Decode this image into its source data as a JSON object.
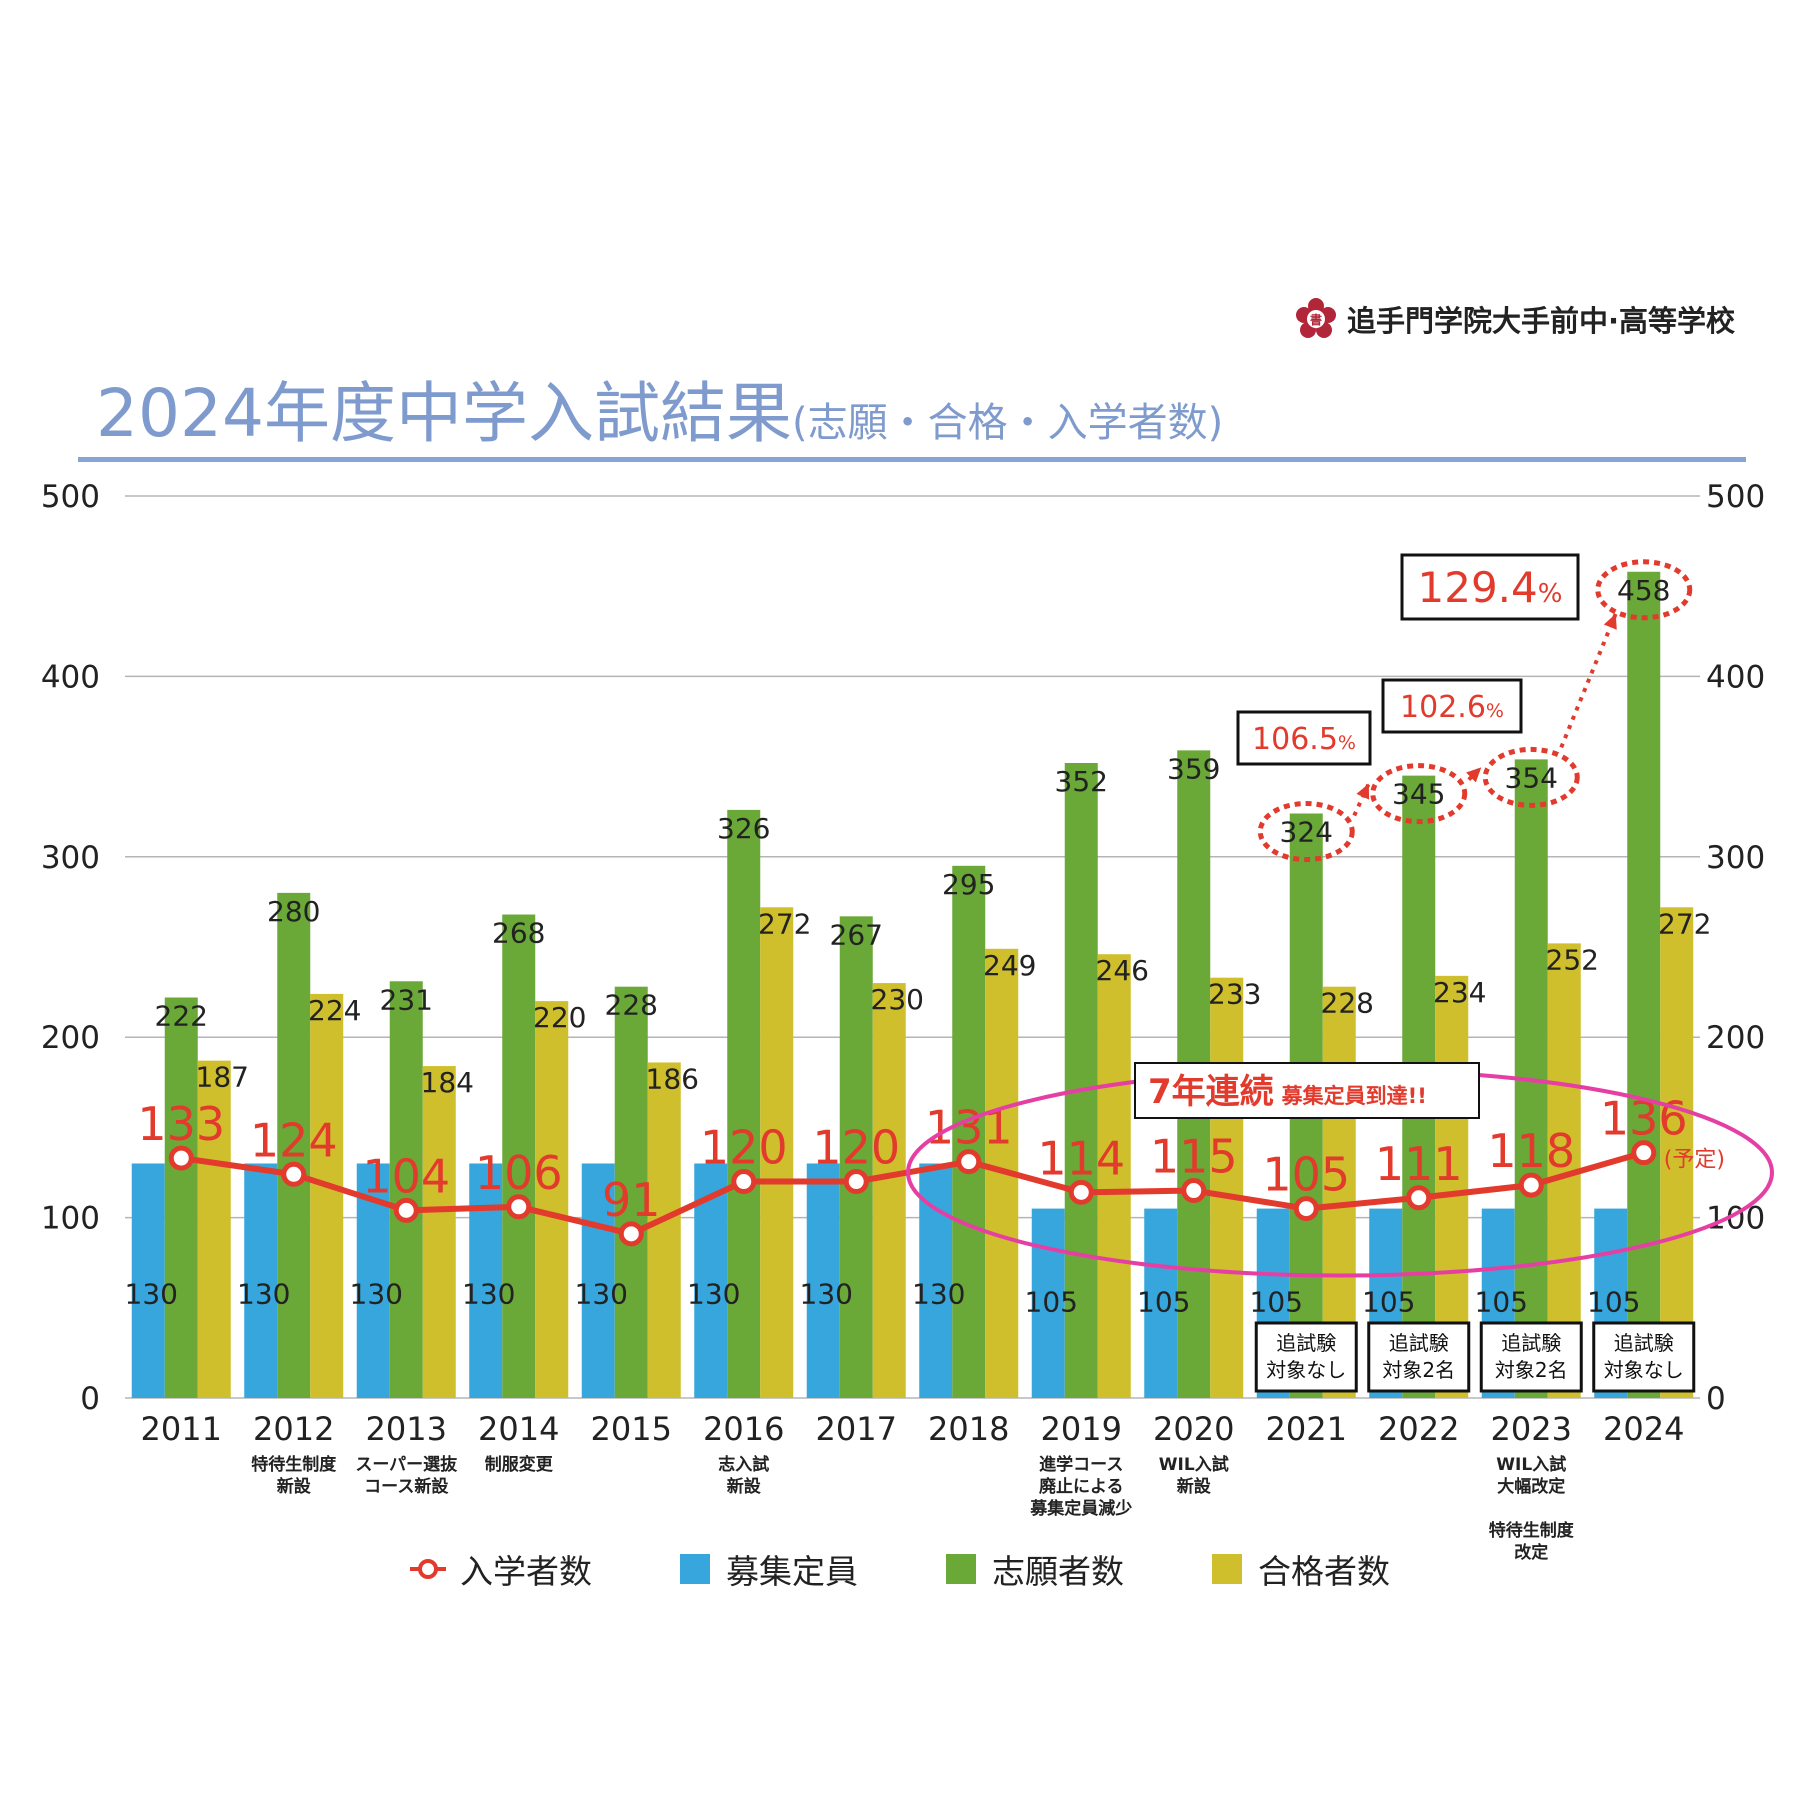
{
  "logo": {
    "text": "追手門学院大手前中·高等学校",
    "emblem_color": "#b2263a"
  },
  "title": {
    "main": "2024年度中学入試結果",
    "sub": "(志願・合格・入学者数)"
  },
  "chart_data": {
    "type": "bar",
    "categories": [
      "2011",
      "2012",
      "2013",
      "2014",
      "2015",
      "2016",
      "2017",
      "2018",
      "2019",
      "2020",
      "2021",
      "2022",
      "2023",
      "2024"
    ],
    "category_notes": [
      [],
      [
        "特待生制度",
        "新設"
      ],
      [
        "スーパー選抜",
        "コース新設"
      ],
      [
        "制服変更"
      ],
      [],
      [
        "志入試",
        "新設"
      ],
      [],
      [],
      [
        "進学コース",
        "廃止による",
        "募集定員減少"
      ],
      [
        "WIL入試",
        "新設"
      ],
      [],
      [],
      [
        "WIL入試",
        "大幅改定",
        "",
        "特待生制度",
        "改定"
      ],
      []
    ],
    "ylim": [
      0,
      500
    ],
    "yticks": [
      0,
      100,
      200,
      300,
      400,
      500
    ],
    "grid": true,
    "series": [
      {
        "name": "募集定員",
        "kind": "bar",
        "color": "#36a6dc",
        "values": [
          130,
          130,
          130,
          130,
          130,
          130,
          130,
          130,
          105,
          105,
          105,
          105,
          105,
          105
        ]
      },
      {
        "name": "志願者数",
        "kind": "bar",
        "color": "#6aa838",
        "values": [
          222,
          280,
          231,
          268,
          228,
          326,
          267,
          295,
          352,
          359,
          324,
          345,
          354,
          458
        ]
      },
      {
        "name": "合格者数",
        "kind": "bar",
        "color": "#cfbf2c",
        "values": [
          187,
          224,
          184,
          220,
          186,
          272,
          230,
          249,
          246,
          233,
          228,
          234,
          252,
          272
        ]
      },
      {
        "name": "入学者数",
        "kind": "line",
        "color": "#e23a2c",
        "values": [
          133,
          124,
          104,
          106,
          91,
          120,
          120,
          131,
          114,
          115,
          105,
          111,
          118,
          136
        ]
      }
    ],
    "legend": [
      "入学者数",
      "募集定員",
      "志願者数",
      "合格者数"
    ],
    "legend_position": "bottom",
    "annotations": {
      "yotei": "(予定)",
      "streak_main": "7年連続",
      "streak_sub": "募集定員到達!!",
      "growth": [
        {
          "value": "106.5",
          "unit": "%"
        },
        {
          "value": "102.6",
          "unit": "%"
        },
        {
          "value": "129.4",
          "unit": "%"
        }
      ],
      "makeup_exam": [
        {
          "year": "2021",
          "lines": [
            "追試験",
            "対象なし"
          ]
        },
        {
          "year": "2022",
          "lines": [
            "追試験",
            "対象2名"
          ]
        },
        {
          "year": "2023",
          "lines": [
            "追試験",
            "対象2名"
          ]
        },
        {
          "year": "2024",
          "lines": [
            "追試験",
            "対象なし"
          ]
        }
      ]
    }
  }
}
